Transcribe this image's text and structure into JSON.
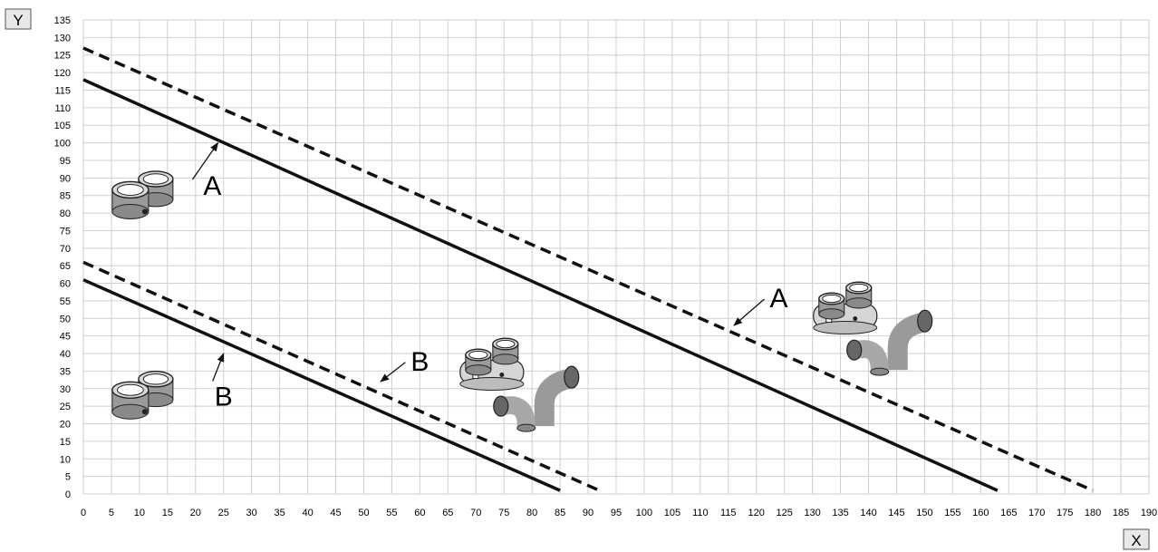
{
  "chart_data": {
    "type": "line",
    "xlabel": "X",
    "ylabel": "Y",
    "xlim": [
      0,
      190
    ],
    "ylim": [
      0,
      135
    ],
    "x_ticks": [
      0,
      5,
      10,
      15,
      20,
      25,
      30,
      35,
      40,
      45,
      50,
      55,
      60,
      65,
      70,
      75,
      80,
      85,
      90,
      95,
      100,
      105,
      110,
      115,
      120,
      125,
      130,
      135,
      140,
      145,
      150,
      155,
      160,
      165,
      170,
      175,
      180,
      185,
      190
    ],
    "y_ticks": [
      0,
      5,
      10,
      15,
      20,
      25,
      30,
      35,
      40,
      45,
      50,
      55,
      60,
      65,
      70,
      75,
      80,
      85,
      90,
      95,
      100,
      105,
      110,
      115,
      120,
      125,
      130,
      135
    ],
    "grid": true,
    "legend": "none",
    "series": [
      {
        "style": "solid",
        "x": [
          0,
          163
        ],
        "y": [
          118,
          1
        ]
      },
      {
        "style": "dashed",
        "x": [
          0,
          180
        ],
        "y": [
          127,
          1
        ]
      },
      {
        "style": "solid",
        "x": [
          0,
          85
        ],
        "y": [
          61,
          1
        ]
      },
      {
        "style": "dashed",
        "x": [
          0,
          92
        ],
        "y": [
          66,
          1
        ]
      }
    ],
    "annotations": [
      {
        "text": "A",
        "x": 23,
        "y": 88,
        "arrow_to": [
          24,
          100
        ]
      },
      {
        "text": "A",
        "x": 124,
        "y": 56,
        "arrow_to": [
          116,
          48
        ]
      },
      {
        "text": "B",
        "x": 25,
        "y": 28,
        "arrow_to": [
          25,
          40
        ]
      },
      {
        "text": "B",
        "x": 60,
        "y": 38,
        "arrow_to": [
          53,
          32
        ]
      }
    ],
    "illustrations": [
      {
        "icon": "twin-pipe-adapter-round-icon",
        "x": 10,
        "y": 83
      },
      {
        "icon": "twin-pipe-adapter-round-icon",
        "x": 10,
        "y": 26
      },
      {
        "icon": "twin-pipe-adapter-box-icon",
        "x": 73,
        "y": 36
      },
      {
        "icon": "pipe-elbow-pair-icon",
        "x": 78,
        "y": 25
      },
      {
        "icon": "twin-pipe-adapter-box-icon",
        "x": 136,
        "y": 52
      },
      {
        "icon": "pipe-elbow-pair-icon",
        "x": 141,
        "y": 41
      }
    ]
  }
}
